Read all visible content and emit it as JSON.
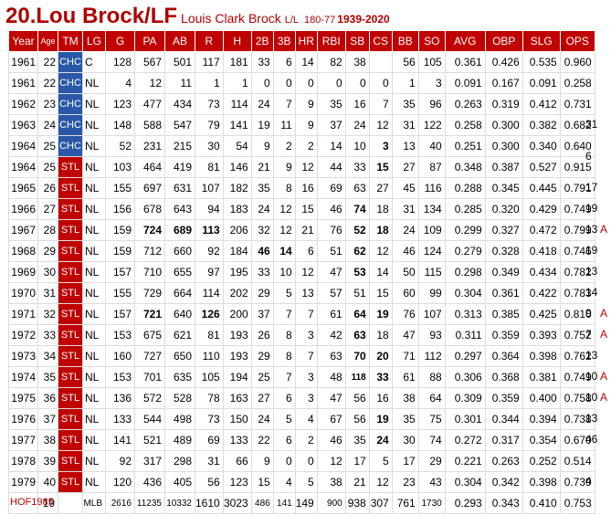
{
  "header": {
    "rank_name": "20.Lou Brock/LF",
    "full_name": "Louis Clark Brock",
    "bats_throws": "L/L",
    "height_weight": "180-77",
    "years": "1939-2020"
  },
  "columns": [
    "Year",
    "Age",
    "TM",
    "LG",
    "G",
    "PA",
    "AB",
    "R",
    "H",
    "2B",
    "3B",
    "HR",
    "RBI",
    "SB",
    "CS",
    "BB",
    "SO",
    "AVG",
    "OBP",
    "SLG",
    "OPS"
  ],
  "rows": [
    {
      "year": "1961",
      "age": "22",
      "tm": "CHC",
      "lg": "C",
      "g": "128",
      "pa": "567",
      "ab": "501",
      "r": "117",
      "h": "181",
      "d": "33",
      "t": "6",
      "hr": "14",
      "rbi": "82",
      "sb": "38",
      "cs": "",
      "bb": "56",
      "so": "105",
      "avg": "0.361",
      "obp": "0.426",
      "slg": "0.535",
      "ops": "0.960",
      "s1": "",
      "s2": "",
      "bold": []
    },
    {
      "year": "1961",
      "age": "22",
      "tm": "CHC",
      "lg": "NL",
      "g": "4",
      "pa": "12",
      "ab": "11",
      "r": "1",
      "h": "1",
      "d": "0",
      "t": "0",
      "hr": "0",
      "rbi": "0",
      "sb": "0",
      "cs": "0",
      "bb": "1",
      "so": "3",
      "avg": "0.091",
      "obp": "0.167",
      "slg": "0.091",
      "ops": "0.258",
      "s1": "",
      "s2": "",
      "bold": []
    },
    {
      "year": "1962",
      "age": "23",
      "tm": "CHC",
      "lg": "NL",
      "g": "123",
      "pa": "477",
      "ab": "434",
      "r": "73",
      "h": "114",
      "d": "24",
      "t": "7",
      "hr": "9",
      "rbi": "35",
      "sb": "16",
      "cs": "7",
      "bb": "35",
      "so": "96",
      "avg": "0.263",
      "obp": "0.319",
      "slg": "0.412",
      "ops": "0.731",
      "s1": "",
      "s2": "",
      "bold": []
    },
    {
      "year": "1963",
      "age": "24",
      "tm": "CHC",
      "lg": "NL",
      "g": "148",
      "pa": "588",
      "ab": "547",
      "r": "79",
      "h": "141",
      "d": "19",
      "t": "11",
      "hr": "9",
      "rbi": "37",
      "sb": "24",
      "cs": "12",
      "bb": "31",
      "so": "122",
      "avg": "0.258",
      "obp": "0.300",
      "slg": "0.382",
      "ops": "0.682",
      "s1": "31",
      "s2": "",
      "bold": []
    },
    {
      "year": "1964",
      "age": "25",
      "tm": "CHC",
      "lg": "NL",
      "g": "52",
      "pa": "231",
      "ab": "215",
      "r": "30",
      "h": "54",
      "d": "9",
      "t": "2",
      "hr": "2",
      "rbi": "14",
      "sb": "10",
      "cs": "3",
      "bb": "13",
      "so": "40",
      "avg": "0.251",
      "obp": "0.300",
      "slg": "0.340",
      "ops": "0.640",
      "s1": "",
      "s2": "",
      "bold": [
        "cs"
      ]
    },
    {
      "year": "1964",
      "age": "25",
      "tm": "STL",
      "lg": "NL",
      "g": "103",
      "pa": "464",
      "ab": "419",
      "r": "81",
      "h": "146",
      "d": "21",
      "t": "9",
      "hr": "12",
      "rbi": "44",
      "sb": "33",
      "cs": "15",
      "bb": "27",
      "so": "87",
      "avg": "0.348",
      "obp": "0.387",
      "slg": "0.527",
      "ops": "0.915",
      "s1": "",
      "s2": "",
      "bold": [
        "cs"
      ]
    },
    {
      "year": "1965",
      "age": "26",
      "tm": "STL",
      "lg": "NL",
      "g": "155",
      "pa": "697",
      "ab": "631",
      "r": "107",
      "h": "182",
      "d": "35",
      "t": "8",
      "hr": "16",
      "rbi": "69",
      "sb": "63",
      "cs": "27",
      "bb": "45",
      "so": "116",
      "avg": "0.288",
      "obp": "0.345",
      "slg": "0.445",
      "ops": "0.791",
      "s1": "17",
      "s2": "",
      "bold": []
    },
    {
      "year": "1966",
      "age": "27",
      "tm": "STL",
      "lg": "NL",
      "g": "156",
      "pa": "678",
      "ab": "643",
      "r": "94",
      "h": "183",
      "d": "24",
      "t": "12",
      "hr": "15",
      "rbi": "46",
      "sb": "74",
      "cs": "18",
      "bb": "31",
      "so": "134",
      "avg": "0.285",
      "obp": "0.320",
      "slg": "0.429",
      "ops": "0.749",
      "s1": "19",
      "s2": "",
      "bold": [
        "sb"
      ]
    },
    {
      "year": "1967",
      "age": "28",
      "tm": "STL",
      "lg": "NL",
      "g": "159",
      "pa": "724",
      "ab": "689",
      "r": "113",
      "h": "206",
      "d": "32",
      "t": "12",
      "hr": "21",
      "rbi": "76",
      "sb": "52",
      "cs": "18",
      "bb": "24",
      "so": "109",
      "avg": "0.299",
      "obp": "0.327",
      "slg": "0.472",
      "ops": "0.799",
      "s1": "13",
      "s2": "A",
      "bold": [
        "pa",
        "ab",
        "r",
        "sb",
        "cs"
      ]
    },
    {
      "year": "1968",
      "age": "29",
      "tm": "STL",
      "lg": "NL",
      "g": "159",
      "pa": "712",
      "ab": "660",
      "r": "92",
      "h": "184",
      "d": "46",
      "t": "14",
      "hr": "6",
      "rbi": "51",
      "sb": "62",
      "cs": "12",
      "bb": "46",
      "so": "124",
      "avg": "0.279",
      "obp": "0.328",
      "slg": "0.418",
      "ops": "0.746",
      "s1": "19",
      "s2": "",
      "bold": [
        "d",
        "t",
        "sb"
      ]
    },
    {
      "year": "1969",
      "age": "30",
      "tm": "STL",
      "lg": "NL",
      "g": "157",
      "pa": "710",
      "ab": "655",
      "r": "97",
      "h": "195",
      "d": "33",
      "t": "10",
      "hr": "12",
      "rbi": "47",
      "sb": "53",
      "cs": "14",
      "bb": "50",
      "so": "115",
      "avg": "0.298",
      "obp": "0.349",
      "slg": "0.434",
      "ops": "0.782",
      "s1": "13",
      "s2": "",
      "bold": [
        "sb"
      ]
    },
    {
      "year": "1970",
      "age": "31",
      "tm": "STL",
      "lg": "NL",
      "g": "155",
      "pa": "729",
      "ab": "664",
      "r": "114",
      "h": "202",
      "d": "29",
      "t": "5",
      "hr": "13",
      "rbi": "57",
      "sb": "51",
      "cs": "15",
      "bb": "60",
      "so": "99",
      "avg": "0.304",
      "obp": "0.361",
      "slg": "0.422",
      "ops": "0.783",
      "s1": "14",
      "s2": "",
      "bold": []
    },
    {
      "year": "1971",
      "age": "32",
      "tm": "STL",
      "lg": "NL",
      "g": "157",
      "pa": "721",
      "ab": "640",
      "r": "126",
      "h": "200",
      "d": "37",
      "t": "7",
      "hr": "7",
      "rbi": "61",
      "sb": "64",
      "cs": "19",
      "bb": "76",
      "so": "107",
      "avg": "0.313",
      "obp": "0.385",
      "slg": "0.425",
      "ops": "0.810",
      "s1": "9",
      "s2": "A",
      "bold": [
        "pa",
        "r",
        "sb",
        "cs"
      ]
    },
    {
      "year": "1972",
      "age": "33",
      "tm": "STL",
      "lg": "NL",
      "g": "153",
      "pa": "675",
      "ab": "621",
      "r": "81",
      "h": "193",
      "d": "26",
      "t": "8",
      "hr": "3",
      "rbi": "42",
      "sb": "63",
      "cs": "18",
      "bb": "47",
      "so": "93",
      "avg": "0.311",
      "obp": "0.359",
      "slg": "0.393",
      "ops": "0.752",
      "s1": "7",
      "s2": "A",
      "bold": [
        "sb"
      ]
    },
    {
      "year": "1973",
      "age": "34",
      "tm": "STL",
      "lg": "NL",
      "g": "160",
      "pa": "727",
      "ab": "650",
      "r": "110",
      "h": "193",
      "d": "29",
      "t": "8",
      "hr": "7",
      "rbi": "63",
      "sb": "70",
      "cs": "20",
      "bb": "71",
      "so": "112",
      "avg": "0.297",
      "obp": "0.364",
      "slg": "0.398",
      "ops": "0.762",
      "s1": "13",
      "s2": "",
      "bold": [
        "sb",
        "cs"
      ]
    },
    {
      "year": "1974",
      "age": "35",
      "tm": "STL",
      "lg": "NL",
      "g": "153",
      "pa": "701",
      "ab": "635",
      "r": "105",
      "h": "194",
      "d": "25",
      "t": "7",
      "hr": "3",
      "rbi": "48",
      "sb": "118",
      "cs": "33",
      "bb": "61",
      "so": "88",
      "avg": "0.306",
      "obp": "0.368",
      "slg": "0.381",
      "ops": "0.749",
      "s1": "10",
      "s2": "A",
      "bold": [
        "sb",
        "cs"
      ]
    },
    {
      "year": "1975",
      "age": "36",
      "tm": "STL",
      "lg": "NL",
      "g": "136",
      "pa": "572",
      "ab": "528",
      "r": "78",
      "h": "163",
      "d": "27",
      "t": "6",
      "hr": "3",
      "rbi": "47",
      "sb": "56",
      "cs": "16",
      "bb": "38",
      "so": "64",
      "avg": "0.309",
      "obp": "0.359",
      "slg": "0.400",
      "ops": "0.758",
      "s1": "10",
      "s2": "A",
      "bold": []
    },
    {
      "year": "1976",
      "age": "37",
      "tm": "STL",
      "lg": "NL",
      "g": "133",
      "pa": "544",
      "ab": "498",
      "r": "73",
      "h": "150",
      "d": "24",
      "t": "5",
      "hr": "4",
      "rbi": "67",
      "sb": "56",
      "cs": "19",
      "bb": "35",
      "so": "75",
      "avg": "0.301",
      "obp": "0.344",
      "slg": "0.394",
      "ops": "0.738",
      "s1": "13",
      "s2": "",
      "bold": [
        "cs"
      ]
    },
    {
      "year": "1977",
      "age": "38",
      "tm": "STL",
      "lg": "NL",
      "g": "141",
      "pa": "521",
      "ab": "489",
      "r": "69",
      "h": "133",
      "d": "22",
      "t": "6",
      "hr": "2",
      "rbi": "46",
      "sb": "35",
      "cs": "24",
      "bb": "30",
      "so": "74",
      "avg": "0.272",
      "obp": "0.317",
      "slg": "0.354",
      "ops": "0.670",
      "s1": "46",
      "s2": "",
      "bold": [
        "cs"
      ]
    },
    {
      "year": "1978",
      "age": "39",
      "tm": "STL",
      "lg": "NL",
      "g": "92",
      "pa": "317",
      "ab": "298",
      "r": "31",
      "h": "66",
      "d": "9",
      "t": "0",
      "hr": "0",
      "rbi": "12",
      "sb": "17",
      "cs": "5",
      "bb": "17",
      "so": "29",
      "avg": "0.221",
      "obp": "0.263",
      "slg": "0.252",
      "ops": "0.514",
      "s1": "",
      "s2": "",
      "bold": []
    },
    {
      "year": "1979",
      "age": "40",
      "tm": "STL",
      "lg": "NL",
      "g": "120",
      "pa": "436",
      "ab": "405",
      "r": "56",
      "h": "123",
      "d": "15",
      "t": "4",
      "hr": "5",
      "rbi": "38",
      "sb": "21",
      "cs": "12",
      "bb": "23",
      "so": "43",
      "avg": "0.304",
      "obp": "0.342",
      "slg": "0.398",
      "ops": "0.739",
      "s1": "4",
      "s2": "",
      "bold": []
    }
  ],
  "totals": {
    "year": "",
    "age": "19",
    "tm": "",
    "lg": "MLB",
    "g": "2616",
    "pa": "11235",
    "ab": "10332",
    "r": "1610",
    "h": "3023",
    "d": "486",
    "t": "141",
    "hr": "149",
    "rbi": "900",
    "sb": "938",
    "cs": "307",
    "bb": "761",
    "so": "1730",
    "avg": "0.293",
    "obp": "0.343",
    "slg": "0.410",
    "ops": "0.753"
  },
  "side_note_1964": "6",
  "footer": "HOF1985",
  "colors": {
    "accent": "#c00000",
    "chc": "#2a58a8",
    "stl": "#c00000"
  }
}
